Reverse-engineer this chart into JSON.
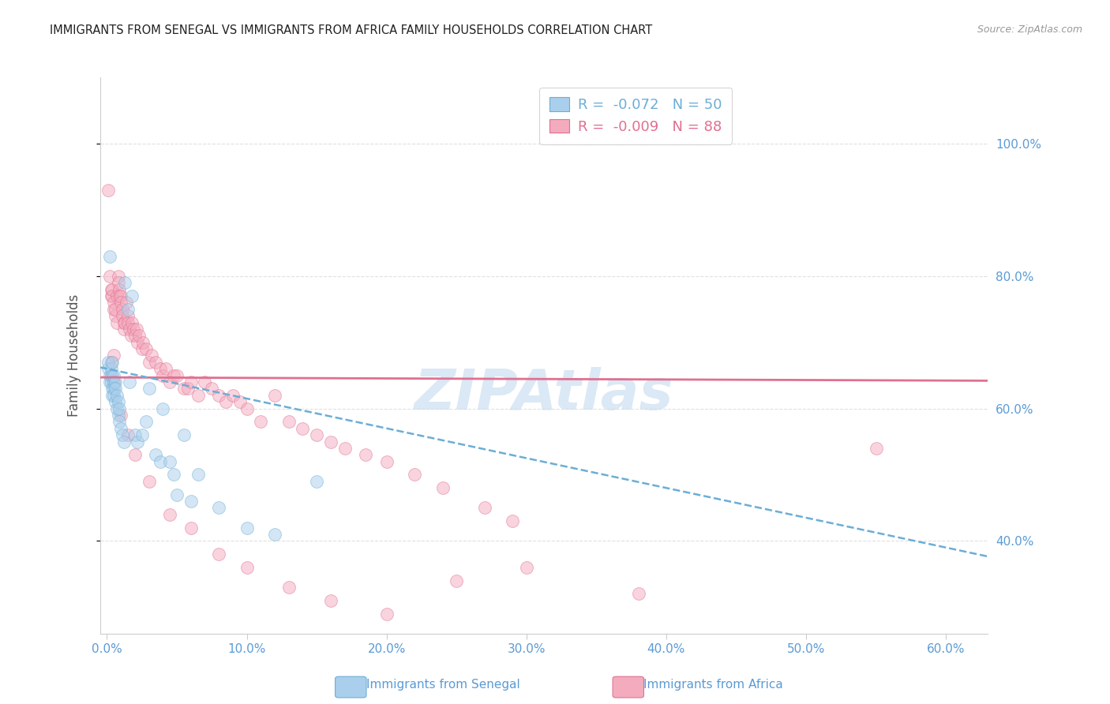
{
  "title": "IMMIGRANTS FROM SENEGAL VS IMMIGRANTS FROM AFRICA FAMILY HOUSEHOLDS CORRELATION CHART",
  "source": "Source: ZipAtlas.com",
  "ylabel": "Family Households",
  "senegal_R": -0.072,
  "senegal_N": 50,
  "africa_R": -0.009,
  "africa_N": 88,
  "senegal_color": "#aacfec",
  "senegal_edge": "#6baed6",
  "africa_color": "#f4abbe",
  "africa_edge": "#e07090",
  "trend_senegal_color": "#6baed6",
  "trend_africa_color": "#e07090",
  "right_axis_color": "#5b9bd5",
  "tick_color": "#5b9bd5",
  "grid_color": "#e0e0e0",
  "watermark_color": "#c8dcf0",
  "title_color": "#222222",
  "source_color": "#999999",
  "axis_label_color": "#555555",
  "background_color": "#ffffff",
  "xlim": [
    -0.005,
    0.63
  ],
  "ylim": [
    0.26,
    1.1
  ],
  "x_ticks": [
    0.0,
    0.1,
    0.2,
    0.3,
    0.4,
    0.5,
    0.6
  ],
  "x_tick_labels": [
    "0.0%",
    "10.0%",
    "20.0%",
    "30.0%",
    "40.0%",
    "50.0%",
    "60.0%"
  ],
  "y_ticks": [
    0.4,
    0.6,
    0.8,
    1.0
  ],
  "y_tick_labels": [
    "40.0%",
    "60.0%",
    "80.0%",
    "100.0%"
  ],
  "marker_size": 130,
  "marker_alpha": 0.5,
  "trend_africa_intercept": 0.647,
  "trend_africa_slope": -0.008,
  "trend_senegal_intercept": 0.66,
  "trend_senegal_slope": -0.45,
  "senegal_x": [
    0.001,
    0.001,
    0.002,
    0.002,
    0.002,
    0.003,
    0.003,
    0.003,
    0.004,
    0.004,
    0.004,
    0.004,
    0.005,
    0.005,
    0.005,
    0.005,
    0.006,
    0.006,
    0.006,
    0.007,
    0.007,
    0.008,
    0.008,
    0.009,
    0.009,
    0.01,
    0.011,
    0.012,
    0.013,
    0.015,
    0.016,
    0.018,
    0.02,
    0.022,
    0.025,
    0.028,
    0.03,
    0.035,
    0.038,
    0.04,
    0.045,
    0.048,
    0.05,
    0.055,
    0.06,
    0.065,
    0.08,
    0.1,
    0.12,
    0.15
  ],
  "senegal_y": [
    0.66,
    0.67,
    0.65,
    0.64,
    0.83,
    0.65,
    0.64,
    0.66,
    0.63,
    0.65,
    0.67,
    0.62,
    0.64,
    0.65,
    0.63,
    0.62,
    0.64,
    0.61,
    0.63,
    0.62,
    0.6,
    0.61,
    0.59,
    0.6,
    0.58,
    0.57,
    0.56,
    0.55,
    0.79,
    0.75,
    0.64,
    0.77,
    0.56,
    0.55,
    0.56,
    0.58,
    0.63,
    0.53,
    0.52,
    0.6,
    0.52,
    0.5,
    0.47,
    0.56,
    0.46,
    0.5,
    0.45,
    0.42,
    0.41,
    0.49
  ],
  "africa_x": [
    0.001,
    0.002,
    0.003,
    0.003,
    0.004,
    0.004,
    0.005,
    0.005,
    0.006,
    0.006,
    0.007,
    0.007,
    0.008,
    0.008,
    0.009,
    0.009,
    0.01,
    0.01,
    0.011,
    0.011,
    0.012,
    0.012,
    0.013,
    0.014,
    0.015,
    0.015,
    0.016,
    0.017,
    0.018,
    0.019,
    0.02,
    0.021,
    0.022,
    0.023,
    0.025,
    0.026,
    0.028,
    0.03,
    0.032,
    0.035,
    0.038,
    0.04,
    0.042,
    0.045,
    0.048,
    0.05,
    0.055,
    0.058,
    0.06,
    0.065,
    0.07,
    0.075,
    0.08,
    0.085,
    0.09,
    0.095,
    0.1,
    0.11,
    0.12,
    0.13,
    0.14,
    0.15,
    0.16,
    0.17,
    0.185,
    0.2,
    0.22,
    0.24,
    0.27,
    0.29,
    0.003,
    0.005,
    0.01,
    0.015,
    0.02,
    0.03,
    0.045,
    0.06,
    0.08,
    0.1,
    0.13,
    0.16,
    0.2,
    0.25,
    0.3,
    0.38,
    0.55,
    0.005
  ],
  "africa_y": [
    0.93,
    0.8,
    0.78,
    0.77,
    0.77,
    0.78,
    0.75,
    0.76,
    0.74,
    0.75,
    0.77,
    0.73,
    0.8,
    0.79,
    0.78,
    0.77,
    0.77,
    0.76,
    0.75,
    0.74,
    0.73,
    0.72,
    0.73,
    0.76,
    0.74,
    0.73,
    0.72,
    0.71,
    0.73,
    0.72,
    0.71,
    0.72,
    0.7,
    0.71,
    0.69,
    0.7,
    0.69,
    0.67,
    0.68,
    0.67,
    0.66,
    0.65,
    0.66,
    0.64,
    0.65,
    0.65,
    0.63,
    0.63,
    0.64,
    0.62,
    0.64,
    0.63,
    0.62,
    0.61,
    0.62,
    0.61,
    0.6,
    0.58,
    0.62,
    0.58,
    0.57,
    0.56,
    0.55,
    0.54,
    0.53,
    0.52,
    0.5,
    0.48,
    0.45,
    0.43,
    0.67,
    0.64,
    0.59,
    0.56,
    0.53,
    0.49,
    0.44,
    0.42,
    0.38,
    0.36,
    0.33,
    0.31,
    0.29,
    0.34,
    0.36,
    0.32,
    0.54,
    0.68
  ]
}
